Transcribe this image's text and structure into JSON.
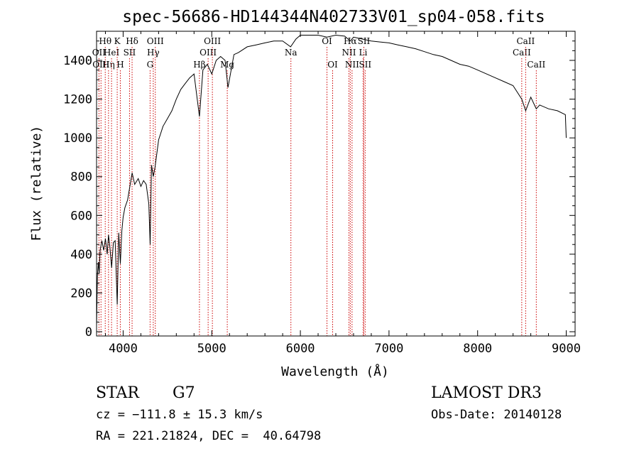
{
  "chart_data": {
    "type": "line",
    "title": "spec-56686-HD144344N402733V01_sp04-058.fits",
    "xlabel": "Wavelength (Å)",
    "ylabel": "Flux (relative)",
    "xlim": [
      3700,
      9100
    ],
    "ylim": [
      0,
      1550
    ],
    "xticks": [
      4000,
      5000,
      6000,
      7000,
      8000,
      9000
    ],
    "yticks": [
      0,
      200,
      400,
      600,
      800,
      1000,
      1200,
      1400
    ],
    "grid": false,
    "series": [
      {
        "x": [
          3700,
          3710,
          3720,
          3730,
          3740,
          3760,
          3780,
          3800,
          3820,
          3835,
          3850,
          3870,
          3890,
          3910,
          3933,
          3950,
          3968,
          3985,
          4000,
          4020,
          4050,
          4080,
          4101,
          4130,
          4170,
          4200,
          4230,
          4260,
          4290,
          4305,
          4320,
          4340,
          4360,
          4380,
          4400,
          4450,
          4500,
          4550,
          4600,
          4650,
          4700,
          4750,
          4800,
          4861,
          4900,
          4950,
          5000,
          5050,
          5100,
          5150,
          5183,
          5250,
          5300,
          5400,
          5500,
          5600,
          5700,
          5800,
          5890,
          5950,
          6000,
          6100,
          6200,
          6300,
          6400,
          6500,
          6563,
          6600,
          6700,
          6800,
          6900,
          7000,
          7100,
          7200,
          7300,
          7400,
          7500,
          7600,
          7700,
          7800,
          7900,
          8000,
          8100,
          8200,
          8300,
          8400,
          8498,
          8542,
          8600,
          8662,
          8700,
          8800,
          8900,
          8990,
          9000
        ],
        "y": [
          30,
          290,
          360,
          300,
          420,
          470,
          420,
          480,
          400,
          500,
          440,
          330,
          460,
          470,
          140,
          510,
          350,
          520,
          590,
          640,
          680,
          760,
          820,
          760,
          790,
          750,
          780,
          760,
          660,
          450,
          860,
          800,
          850,
          920,
          990,
          1060,
          1100,
          1140,
          1200,
          1250,
          1280,
          1310,
          1330,
          1110,
          1350,
          1380,
          1330,
          1400,
          1420,
          1400,
          1260,
          1430,
          1440,
          1470,
          1480,
          1490,
          1500,
          1500,
          1470,
          1510,
          1530,
          1530,
          1530,
          1520,
          1530,
          1525,
          1500,
          1520,
          1510,
          1500,
          1495,
          1490,
          1480,
          1470,
          1460,
          1445,
          1430,
          1420,
          1400,
          1380,
          1370,
          1350,
          1330,
          1310,
          1290,
          1270,
          1200,
          1140,
          1210,
          1150,
          1170,
          1150,
          1140,
          1120,
          1000
        ]
      }
    ],
    "lines": [
      {
        "wl": 3727,
        "label": "OII",
        "row": 2
      },
      {
        "wl": 3750,
        "label": "OIII",
        "row": 3
      },
      {
        "wl": 3798,
        "label": "Hθ",
        "row": 1
      },
      {
        "wl": 3835,
        "label": "Hη",
        "row": 3
      },
      {
        "wl": 3869,
        "label": "HeI",
        "row": 2
      },
      {
        "wl": 3933,
        "label": "K",
        "row": 1
      },
      {
        "wl": 3968,
        "label": "H",
        "row": 3
      },
      {
        "wl": 4072,
        "label": "SII",
        "row": 2
      },
      {
        "wl": 4101,
        "label": "Hδ",
        "row": 1
      },
      {
        "wl": 4304,
        "label": "G",
        "row": 3
      },
      {
        "wl": 4340,
        "label": "Hγ",
        "row": 2
      },
      {
        "wl": 4363,
        "label": "OIII",
        "row": 1
      },
      {
        "wl": 4861,
        "label": "Hβ",
        "row": 3
      },
      {
        "wl": 4959,
        "label": "OIII",
        "row": 2
      },
      {
        "wl": 5007,
        "label": "OIII",
        "row": 1
      },
      {
        "wl": 5175,
        "label": "Mg",
        "row": 3
      },
      {
        "wl": 5893,
        "label": "Na",
        "row": 2
      },
      {
        "wl": 6300,
        "label": "OI",
        "row": 1
      },
      {
        "wl": 6364,
        "label": "OI",
        "row": 3
      },
      {
        "wl": 6548,
        "label": "NII",
        "row": 2
      },
      {
        "wl": 6563,
        "label": "Hα",
        "row": 1
      },
      {
        "wl": 6583,
        "label": "NII",
        "row": 3
      },
      {
        "wl": 6708,
        "label": "Li",
        "row": 2
      },
      {
        "wl": 6716,
        "label": "SII",
        "row": 1
      },
      {
        "wl": 6731,
        "label": "SII",
        "row": 3
      },
      {
        "wl": 8498,
        "label": "CaII",
        "row": 2
      },
      {
        "wl": 8542,
        "label": "CaII",
        "row": 1
      },
      {
        "wl": 8662,
        "label": "CaII",
        "row": 3
      }
    ]
  },
  "info": {
    "object_class": "STAR",
    "subclass": "G7",
    "survey": "LAMOST DR3",
    "redshift": "cz = −111.8 ± 15.3 km/s",
    "obs_date": "Obs-Date: 20140128",
    "coords": "RA = 221.21824, DEC =  40.64798"
  }
}
